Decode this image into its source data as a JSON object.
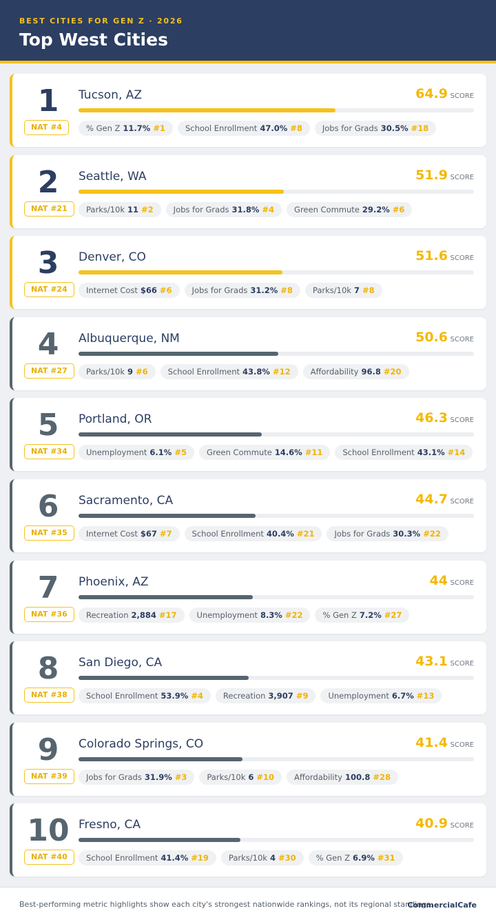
{
  "header": {
    "kicker": "BEST CITIES FOR GEN Z · 2026",
    "title": "Top West Cities"
  },
  "cities": [
    {
      "rank": "1",
      "name": "Tucson, AZ",
      "national": "NAT #4",
      "score": 64.9,
      "score_label": "SCORE",
      "metrics": [
        {
          "name": "% Gen Z",
          "value": "11.7%",
          "rank": "#1"
        },
        {
          "name": "School Enrollment",
          "value": "47.0%",
          "rank": "#8"
        },
        {
          "name": "Jobs for Grads",
          "value": "30.5%",
          "rank": "#18"
        }
      ]
    },
    {
      "rank": "2",
      "name": "Seattle, WA",
      "national": "NAT #21",
      "score": 51.9,
      "score_label": "SCORE",
      "metrics": [
        {
          "name": "Parks/10k",
          "value": "11",
          "rank": "#2"
        },
        {
          "name": "Jobs for Grads",
          "value": "31.8%",
          "rank": "#4"
        },
        {
          "name": "Green Commute",
          "value": "29.2%",
          "rank": "#6"
        }
      ]
    },
    {
      "rank": "3",
      "name": "Denver, CO",
      "national": "NAT #24",
      "score": 51.6,
      "score_label": "SCORE",
      "metrics": [
        {
          "name": "Internet Cost",
          "value": "$66",
          "rank": "#6"
        },
        {
          "name": "Jobs for Grads",
          "value": "31.2%",
          "rank": "#8"
        },
        {
          "name": "Parks/10k",
          "value": "7",
          "rank": "#8"
        }
      ]
    },
    {
      "rank": "4",
      "name": "Albuquerque, NM",
      "national": "NAT #27",
      "score": 50.6,
      "score_label": "SCORE",
      "metrics": [
        {
          "name": "Parks/10k",
          "value": "9",
          "rank": "#6"
        },
        {
          "name": "School Enrollment",
          "value": "43.8%",
          "rank": "#12"
        },
        {
          "name": "Affordability",
          "value": "96.8",
          "rank": "#20"
        }
      ]
    },
    {
      "rank": "5",
      "name": "Portland, OR",
      "national": "NAT #34",
      "score": 46.3,
      "score_label": "SCORE",
      "metrics": [
        {
          "name": "Unemployment",
          "value": "6.1%",
          "rank": "#5"
        },
        {
          "name": "Green Commute",
          "value": "14.6%",
          "rank": "#11"
        },
        {
          "name": "School Enrollment",
          "value": "43.1%",
          "rank": "#14"
        }
      ]
    },
    {
      "rank": "6",
      "name": "Sacramento, CA",
      "national": "NAT #35",
      "score": 44.7,
      "score_label": "SCORE",
      "metrics": [
        {
          "name": "Internet Cost",
          "value": "$67",
          "rank": "#7"
        },
        {
          "name": "School Enrollment",
          "value": "40.4%",
          "rank": "#21"
        },
        {
          "name": "Jobs for Grads",
          "value": "30.3%",
          "rank": "#22"
        }
      ]
    },
    {
      "rank": "7",
      "name": "Phoenix, AZ",
      "national": "NAT #36",
      "score": 44.0,
      "score_label": "SCORE",
      "metrics": [
        {
          "name": "Recreation",
          "value": "2,884",
          "rank": "#17"
        },
        {
          "name": "Unemployment",
          "value": "8.3%",
          "rank": "#22"
        },
        {
          "name": "% Gen Z",
          "value": "7.2%",
          "rank": "#27"
        }
      ]
    },
    {
      "rank": "8",
      "name": "San Diego, CA",
      "national": "NAT #38",
      "score": 43.1,
      "score_label": "SCORE",
      "metrics": [
        {
          "name": "School Enrollment",
          "value": "53.9%",
          "rank": "#4"
        },
        {
          "name": "Recreation",
          "value": "3,907",
          "rank": "#9"
        },
        {
          "name": "Unemployment",
          "value": "6.7%",
          "rank": "#13"
        }
      ]
    },
    {
      "rank": "9",
      "name": "Colorado Springs, CO",
      "national": "NAT #39",
      "score": 41.4,
      "score_label": "SCORE",
      "metrics": [
        {
          "name": "Jobs for Grads",
          "value": "31.9%",
          "rank": "#3"
        },
        {
          "name": "Parks/10k",
          "value": "6",
          "rank": "#10"
        },
        {
          "name": "Affordability",
          "value": "100.8",
          "rank": "#28"
        }
      ]
    },
    {
      "rank": "10",
      "name": "Fresno, CA",
      "national": "NAT #40",
      "score": 40.9,
      "score_label": "SCORE",
      "metrics": [
        {
          "name": "School Enrollment",
          "value": "41.4%",
          "rank": "#19"
        },
        {
          "name": "Parks/10k",
          "value": "4",
          "rank": "#30"
        },
        {
          "name": "% Gen Z",
          "value": "6.9%",
          "rank": "#31"
        }
      ]
    }
  ],
  "footer": {
    "note": "Best-performing metric highlights show each city's strongest nationwide rankings, not its regional standings.",
    "brand": "CommercialCafe"
  }
}
